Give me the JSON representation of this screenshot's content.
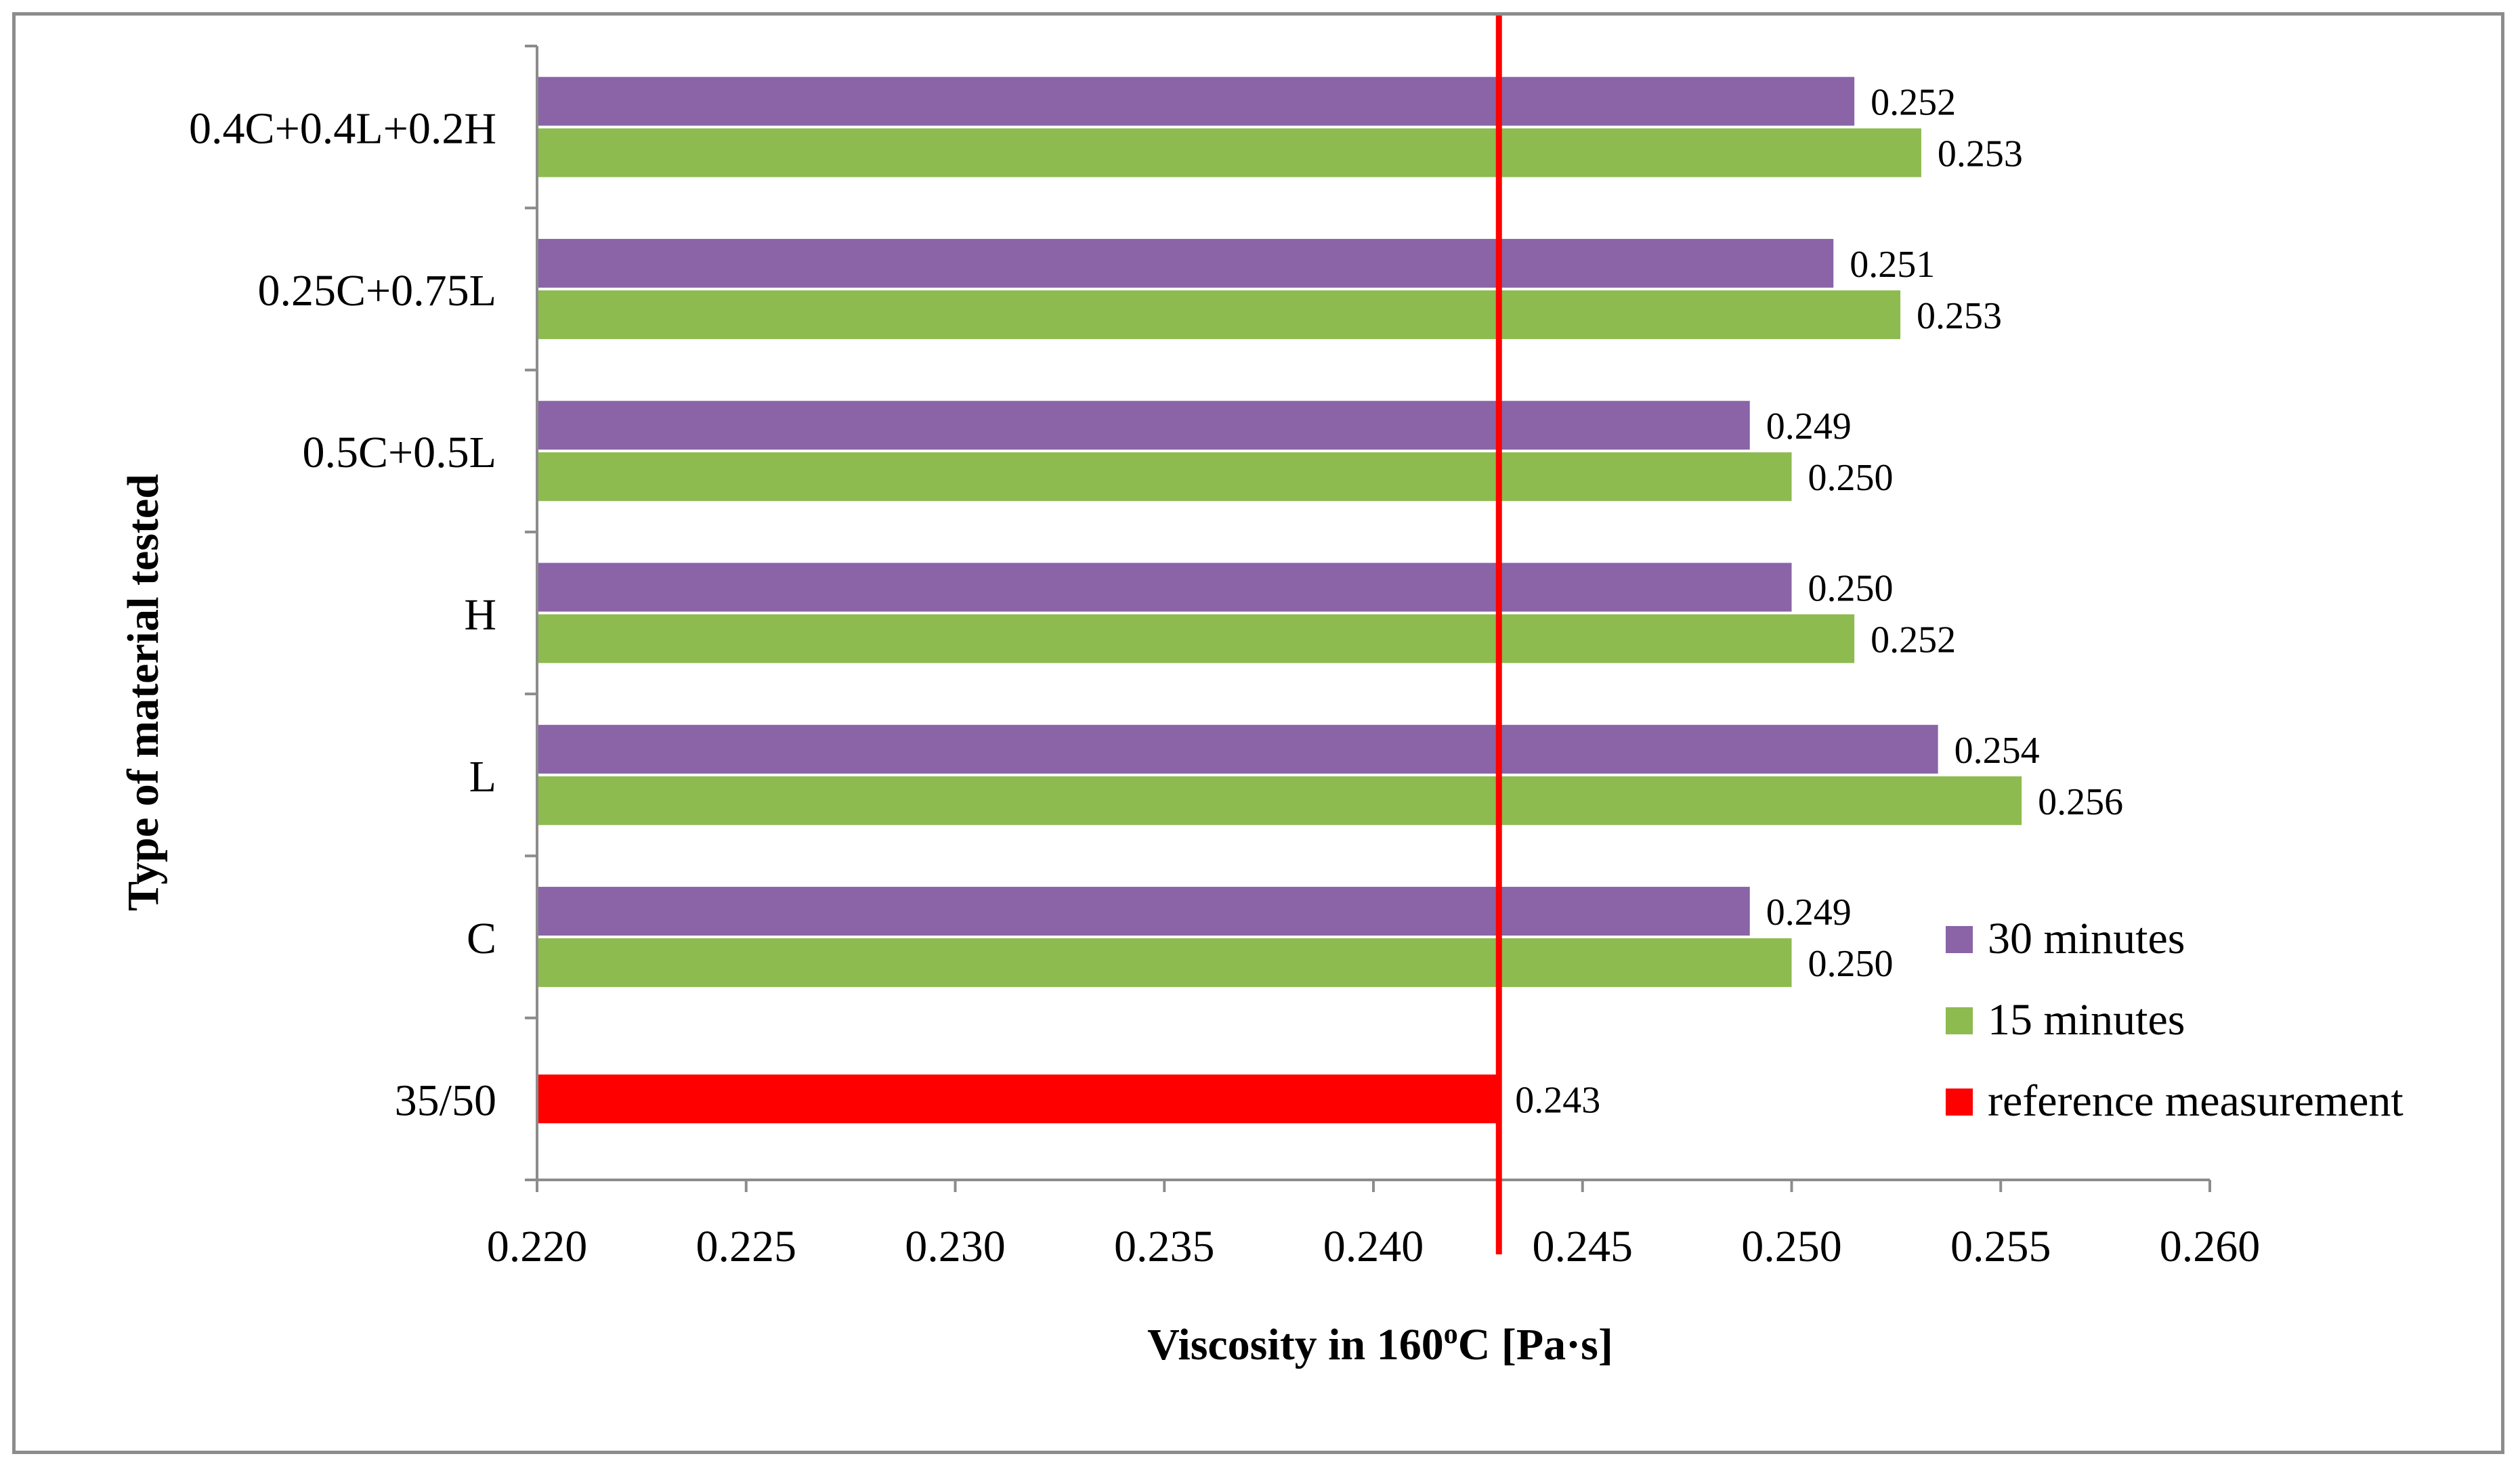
{
  "chart_data": {
    "type": "bar",
    "orientation": "horizontal",
    "xlabel": "Viscosity in 160°C  [Pa·s]",
    "xlabel_parts": {
      "pre": "Viscosity in 160",
      "sup": "o",
      "post": "C  [Pa·s]"
    },
    "ylabel": "Type of material tested",
    "xlim": [
      0.22,
      0.26
    ],
    "x_ticks": [
      "0.220",
      "0.225",
      "0.230",
      "0.235",
      "0.240",
      "0.245",
      "0.250",
      "0.255",
      "0.260"
    ],
    "x_tick_values": [
      0.22,
      0.225,
      0.23,
      0.235,
      0.24,
      0.245,
      0.25,
      0.255,
      0.26
    ],
    "categories": [
      "0.4C+0.4L+0.2H",
      "0.25C+0.75L",
      "0.5C+0.5L",
      "H",
      "L",
      "C",
      "35/50"
    ],
    "series": [
      {
        "name": "30 minutes",
        "color": "#8A64A7",
        "values": [
          0.2515,
          0.251,
          0.249,
          0.25,
          0.2535,
          0.249,
          null
        ],
        "labels": [
          "0.252",
          "0.251",
          "0.249",
          "0.250",
          "0.254",
          "0.249",
          null
        ]
      },
      {
        "name": "15 minutes",
        "color": "#8DBB4F",
        "values": [
          0.2531,
          0.2526,
          0.25,
          0.2515,
          0.2555,
          0.25,
          null
        ],
        "labels": [
          "0.253",
          "0.253",
          "0.250",
          "0.252",
          "0.256",
          "0.250",
          null
        ]
      },
      {
        "name": "reference measurement",
        "color": "#FF0000",
        "values": [
          null,
          null,
          null,
          null,
          null,
          null,
          0.243
        ],
        "labels": [
          null,
          null,
          null,
          null,
          null,
          null,
          "0.243"
        ]
      }
    ],
    "reference_line": {
      "value": 0.243,
      "color": "#FF0000"
    },
    "legend": {
      "placement": "bottom-right",
      "items": [
        {
          "label": "30 minutes",
          "color": "#8A64A7"
        },
        {
          "label": "15 minutes",
          "color": "#8DBB4F"
        },
        {
          "label": "reference measurement",
          "color": "#FF0000"
        }
      ]
    },
    "grid": false
  }
}
